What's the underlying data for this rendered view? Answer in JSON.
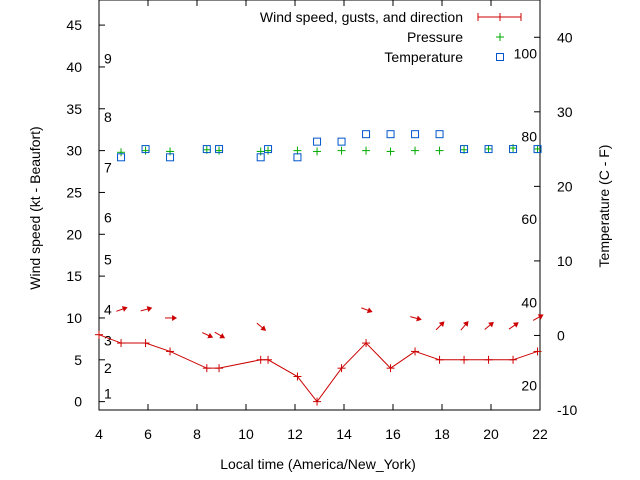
{
  "chart_data": {
    "type": "line",
    "xlabel": "Local time (America/New_York)",
    "ylabel_left": "Wind speed (kt - Beaufort)",
    "ylabel_right": "Temperature (C - F)",
    "xlim": [
      4,
      22
    ],
    "x_ticks": [
      4,
      6,
      8,
      10,
      12,
      14,
      16,
      18,
      20,
      22
    ],
    "ylim_left": [
      -1,
      48
    ],
    "y_ticks_left": [
      0,
      5,
      10,
      15,
      20,
      25,
      30,
      35,
      40,
      45
    ],
    "ylim_right": [
      -10,
      45
    ],
    "y_ticks_right": [
      -10,
      0,
      10,
      20,
      30,
      40
    ],
    "beaufort_labels": [
      {
        "text": "1",
        "y": 1
      },
      {
        "text": "2",
        "y": 4
      },
      {
        "text": "3",
        "y": 7.3
      },
      {
        "text": "4",
        "y": 11
      },
      {
        "text": "5",
        "y": 17
      },
      {
        "text": "6",
        "y": 22
      },
      {
        "text": "7",
        "y": 28
      },
      {
        "text": "8",
        "y": 34
      },
      {
        "text": "9",
        "y": 41
      }
    ],
    "fahrenheit_labels": [
      {
        "text": "20",
        "y": -6.7
      },
      {
        "text": "40",
        "y": 4.4
      },
      {
        "text": "60",
        "y": 15.6
      },
      {
        "text": "80",
        "y": 26.7
      },
      {
        "text": "100",
        "y": 37.8
      }
    ],
    "legend": {
      "position": "top-right",
      "entries": [
        "Wind speed, gusts, and direction",
        "Pressure",
        "Temperature"
      ]
    },
    "series": [
      {
        "name": "Wind speed, gusts, and direction",
        "axis": "left",
        "color": "#cc0000",
        "marker": "plus",
        "x": [
          4,
          4.9,
          5.9,
          6.9,
          8.4,
          8.9,
          10.6,
          10.9,
          12.1,
          12.9,
          13.9,
          14.9,
          15.9,
          16.9,
          17.9,
          18.9,
          19.9,
          20.9,
          21.9
        ],
        "values": [
          8,
          7,
          7,
          6,
          4,
          4,
          5,
          5,
          3,
          0,
          4,
          7,
          4,
          6,
          5,
          5,
          5,
          5,
          6
        ]
      },
      {
        "name": "Wind direction arrows",
        "axis": "left",
        "color": "#cc0000",
        "marker": "arrow",
        "x": [
          4.9,
          5.9,
          6.9,
          8.4,
          8.9,
          10.6,
          14.9,
          16.9,
          17.9,
          18.9,
          19.9,
          20.9,
          21.9
        ],
        "values": [
          11,
          11,
          10,
          8,
          8,
          9,
          11,
          10,
          9,
          9,
          9,
          9,
          10
        ],
        "direction_deg": [
          -20,
          -15,
          0,
          25,
          30,
          40,
          20,
          15,
          -45,
          -50,
          -40,
          -35,
          -30
        ]
      },
      {
        "name": "Pressure",
        "axis": "left",
        "color": "#00aa00",
        "marker": "plus",
        "x": [
          4.9,
          5.9,
          6.9,
          8.4,
          8.9,
          10.6,
          10.9,
          12.1,
          12.9,
          13.9,
          14.9,
          15.9,
          16.9,
          17.9,
          18.9,
          19.9,
          20.9,
          21.9
        ],
        "values": [
          29.8,
          30,
          29.9,
          30.1,
          30,
          29.9,
          30,
          30,
          29.9,
          30,
          30,
          29.9,
          30,
          30,
          30.1,
          30.2,
          30.3,
          30.2
        ]
      },
      {
        "name": "Temperature",
        "axis": "right",
        "color": "#0055cc",
        "marker": "square",
        "x": [
          4.9,
          5.9,
          6.9,
          8.4,
          8.9,
          10.6,
          10.9,
          12.1,
          12.9,
          13.9,
          14.9,
          15.9,
          16.9,
          17.9,
          18.9,
          19.9,
          20.9,
          21.9
        ],
        "values": [
          23.9,
          25,
          23.9,
          25,
          25,
          23.9,
          25,
          23.9,
          26,
          26,
          27,
          27,
          27,
          27,
          25,
          25,
          25,
          25
        ]
      }
    ]
  }
}
